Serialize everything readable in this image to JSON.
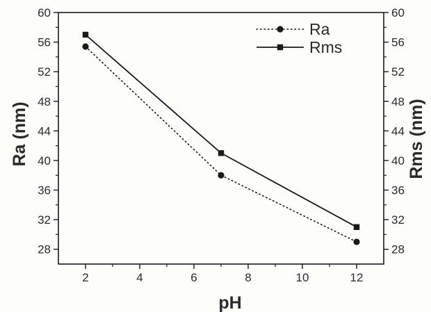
{
  "chart_data": {
    "type": "line",
    "x": [
      2,
      7,
      12
    ],
    "series": [
      {
        "name": "Ra",
        "values": [
          55.4,
          38,
          29
        ],
        "marker": "circle",
        "line": "dotted",
        "axis": "left"
      },
      {
        "name": "Rms",
        "values": [
          57,
          41,
          31
        ],
        "marker": "square",
        "line": "solid",
        "axis": "right"
      }
    ],
    "title": "",
    "xlabel": "pH",
    "ylabel": "Ra (nm)",
    "ylabel_right": "Rms (nm)",
    "xlim": [
      1,
      13
    ],
    "ylim": [
      26,
      60
    ],
    "ylim_right": [
      26,
      60
    ],
    "xticks": [
      2,
      4,
      6,
      8,
      10,
      12
    ],
    "yticks": [
      28,
      32,
      36,
      40,
      44,
      48,
      52,
      56,
      60
    ],
    "grid": false,
    "legend_position": "top-right",
    "colors": {
      "line": "#1a1a1a",
      "text": "#2a2a2a",
      "background": "#fdfdf9"
    }
  }
}
